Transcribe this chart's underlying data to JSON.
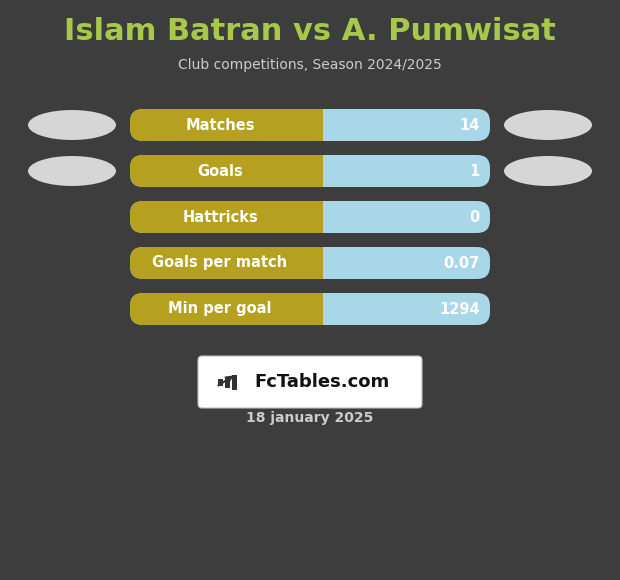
{
  "title": "Islam Batran vs A. Pumwisat",
  "subtitle": "Club competitions, Season 2024/2025",
  "title_color": "#a8c84a",
  "subtitle_color": "#cccccc",
  "background_color": "#3d3d3d",
  "date_text": "18 january 2025",
  "rows": [
    {
      "label": "Matches",
      "value": "14"
    },
    {
      "label": "Goals",
      "value": "1"
    },
    {
      "label": "Hattricks",
      "value": "0"
    },
    {
      "label": "Goals per match",
      "value": "0.07"
    },
    {
      "label": "Min per goal",
      "value": "1294"
    }
  ],
  "bar_left_color": "#b5a020",
  "bar_right_color": "#a8d8e8",
  "bar_text_color": "#ffffff",
  "ellipse_color": "#e8e8e8",
  "logo_box_color": "#ffffff",
  "logo_text": "FcTables.com",
  "figwidth": 6.2,
  "figheight": 5.8,
  "dpi": 100
}
